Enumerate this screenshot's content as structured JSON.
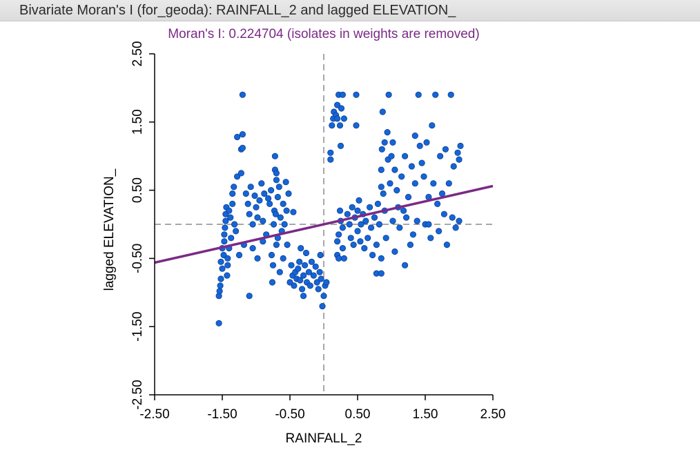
{
  "window": {
    "title": "Bivariate Moran's I (for_geoda): RAINFALL_2 and lagged ELEVATION_"
  },
  "colors": {
    "points": "#1565d8",
    "point_stroke": "#0d3f8e",
    "regression": "#7b2a86",
    "subtitle": "#7b2a86",
    "axis": "#000000",
    "dashed": "#8a8a8a"
  },
  "chart_data": {
    "type": "scatter",
    "title": "",
    "subtitle": "Moran's I: 0.224704 (isolates in weights are removed)",
    "xlabel": "RAINFALL_2",
    "ylabel": "lagged ELEVATION_",
    "xlim": [
      -2.5,
      2.5
    ],
    "ylim": [
      -2.5,
      2.5
    ],
    "xticks": [
      "-2.50",
      "-1.50",
      "-0.50",
      "0.50",
      "1.50",
      "2.50"
    ],
    "yticks": [
      "-2.50",
      "-1.50",
      "-0.50",
      "0.50",
      "1.50",
      "2.50"
    ],
    "grid": false,
    "reference_lines": {
      "x": 0,
      "y": 0
    },
    "regression": {
      "slope": 0.2247,
      "intercept": 0
    },
    "points": [
      [
        -1.55,
        -1.45
      ],
      [
        -1.55,
        -1.05
      ],
      [
        -1.54,
        -0.98
      ],
      [
        -1.53,
        -0.9
      ],
      [
        -1.52,
        -0.8
      ],
      [
        -1.52,
        -0.55
      ],
      [
        -1.5,
        -0.65
      ],
      [
        -1.5,
        -0.35
      ],
      [
        -1.48,
        -0.45
      ],
      [
        -1.47,
        -0.25
      ],
      [
        -1.47,
        -0.15
      ],
      [
        -1.46,
        -0.05
      ],
      [
        -1.45,
        0.05
      ],
      [
        -1.45,
        0.15
      ],
      [
        -1.44,
        0.25
      ],
      [
        -1.43,
        -0.75
      ],
      [
        -1.42,
        -0.6
      ],
      [
        -1.42,
        -0.5
      ],
      [
        -1.4,
        -0.35
      ],
      [
        -1.4,
        0.2
      ],
      [
        -1.38,
        0.1
      ],
      [
        -1.37,
        -0.2
      ],
      [
        -1.35,
        0.3
      ],
      [
        -1.35,
        0.45
      ],
      [
        -1.33,
        0.55
      ],
      [
        -1.32,
        0.0
      ],
      [
        -1.3,
        -0.1
      ],
      [
        -1.28,
        0.7
      ],
      [
        -1.28,
        1.28
      ],
      [
        -1.25,
        -0.45
      ],
      [
        -1.22,
        1.1
      ],
      [
        -1.2,
        1.12
      ],
      [
        -1.2,
        1.32
      ],
      [
        -1.22,
        0.75
      ],
      [
        -1.2,
        1.9
      ],
      [
        -1.18,
        -0.3
      ],
      [
        -1.15,
        0.45
      ],
      [
        -1.12,
        0.3
      ],
      [
        -1.1,
        -1.05
      ],
      [
        -1.1,
        0.15
      ],
      [
        -1.08,
        0.55
      ],
      [
        -1.05,
        0.0
      ],
      [
        -1.05,
        -0.35
      ],
      [
        -1.02,
        0.42
      ],
      [
        -1.0,
        0.25
      ],
      [
        -0.98,
        -0.5
      ],
      [
        -0.98,
        0.1
      ],
      [
        -0.95,
        0.35
      ],
      [
        -0.92,
        0.6
      ],
      [
        -0.9,
        -0.25
      ],
      [
        -0.9,
        0.05
      ],
      [
        -0.88,
        0.45
      ],
      [
        -0.85,
        -0.15
      ],
      [
        -0.82,
        0.38
      ],
      [
        -0.8,
        0.3
      ],
      [
        -0.78,
        0.5
      ],
      [
        -0.77,
        -0.45
      ],
      [
        -0.76,
        -0.85
      ],
      [
        -0.75,
        -0.6
      ],
      [
        -0.74,
        0.0
      ],
      [
        -0.73,
        0.2
      ],
      [
        -0.72,
        0.8
      ],
      [
        -0.72,
        1.0
      ],
      [
        -0.71,
        0.15
      ],
      [
        -0.7,
        -0.3
      ],
      [
        -0.7,
        0.65
      ],
      [
        -0.7,
        0.75
      ],
      [
        -0.68,
        -0.2
      ],
      [
        -0.68,
        0.4
      ],
      [
        -0.66,
        0.55
      ],
      [
        -0.65,
        -0.7
      ],
      [
        -0.64,
        0.1
      ],
      [
        -0.62,
        -0.1
      ],
      [
        -0.6,
        0.3
      ],
      [
        -0.6,
        -0.5
      ],
      [
        -0.58,
        0.0
      ],
      [
        -0.56,
        0.62
      ],
      [
        -0.55,
        0.2
      ],
      [
        -0.54,
        -0.3
      ],
      [
        -0.52,
        0.45
      ],
      [
        -0.5,
        -0.85
      ],
      [
        -0.48,
        -0.6
      ],
      [
        -0.46,
        -0.75
      ],
      [
        -0.45,
        0.18
      ],
      [
        -0.44,
        -0.9
      ],
      [
        -0.42,
        -0.7
      ],
      [
        -0.4,
        -0.8
      ],
      [
        -0.38,
        -0.65
      ],
      [
        -0.36,
        -0.55
      ],
      [
        -0.35,
        -0.82
      ],
      [
        -0.34,
        -0.35
      ],
      [
        -0.32,
        -0.95
      ],
      [
        -0.3,
        -0.75
      ],
      [
        -0.3,
        -1.05
      ],
      [
        -0.28,
        -0.6
      ],
      [
        -0.26,
        -0.42
      ],
      [
        -0.25,
        -0.85
      ],
      [
        -0.22,
        -0.7
      ],
      [
        -0.2,
        -0.9
      ],
      [
        -0.18,
        -0.55
      ],
      [
        -0.15,
        -0.75
      ],
      [
        -0.12,
        -0.62
      ],
      [
        -0.1,
        -0.85
      ],
      [
        -0.08,
        -0.95
      ],
      [
        -0.06,
        -0.7
      ],
      [
        -0.05,
        -0.45
      ],
      [
        -0.04,
        -0.8
      ],
      [
        -0.02,
        -1.2
      ],
      [
        0.0,
        -1.05
      ],
      [
        0.02,
        -0.9
      ],
      [
        0.04,
        -0.85
      ],
      [
        0.1,
        0.95
      ],
      [
        0.1,
        1.05
      ],
      [
        0.12,
        1.45
      ],
      [
        0.14,
        1.55
      ],
      [
        0.15,
        1.65
      ],
      [
        0.18,
        1.6
      ],
      [
        0.2,
        1.55
      ],
      [
        0.2,
        1.75
      ],
      [
        0.22,
        1.9
      ],
      [
        0.24,
        1.45
      ],
      [
        0.25,
        1.15
      ],
      [
        0.26,
        1.7
      ],
      [
        0.28,
        1.9
      ],
      [
        0.3,
        1.55
      ],
      [
        0.2,
        -0.25
      ],
      [
        0.22,
        -0.15
      ],
      [
        0.2,
        -0.45
      ],
      [
        0.22,
        -0.5
      ],
      [
        0.24,
        0.2
      ],
      [
        0.25,
        0.05
      ],
      [
        0.28,
        -0.05
      ],
      [
        0.28,
        -0.35
      ],
      [
        0.3,
        -0.5
      ],
      [
        0.35,
        0.15
      ],
      [
        0.38,
        0.0
      ],
      [
        0.4,
        -0.2
      ],
      [
        0.42,
        0.25
      ],
      [
        0.44,
        -0.3
      ],
      [
        0.46,
        0.1
      ],
      [
        0.48,
        1.9
      ],
      [
        0.48,
        1.45
      ],
      [
        0.5,
        -0.1
      ],
      [
        0.5,
        0.2
      ],
      [
        0.52,
        0.35
      ],
      [
        0.54,
        -0.25
      ],
      [
        0.55,
        0.0
      ],
      [
        0.58,
        0.15
      ],
      [
        0.6,
        -0.35
      ],
      [
        0.62,
        0.05
      ],
      [
        0.65,
        -0.2
      ],
      [
        0.68,
        0.25
      ],
      [
        0.7,
        -0.05
      ],
      [
        0.72,
        -0.45
      ],
      [
        0.75,
        0.1
      ],
      [
        0.78,
        -0.3
      ],
      [
        0.78,
        -0.72
      ],
      [
        0.8,
        0.3
      ],
      [
        0.82,
        0.0
      ],
      [
        0.85,
        -0.5
      ],
      [
        0.85,
        -0.72
      ],
      [
        0.85,
        0.55
      ],
      [
        0.85,
        0.8
      ],
      [
        0.86,
        1.1
      ],
      [
        0.87,
        1.65
      ],
      [
        0.88,
        0.45
      ],
      [
        0.9,
        1.2
      ],
      [
        0.9,
        0.2
      ],
      [
        0.92,
        -0.2
      ],
      [
        0.94,
        1.35
      ],
      [
        0.95,
        0.95
      ],
      [
        0.96,
        1.9
      ],
      [
        0.98,
        0.6
      ],
      [
        1.0,
        1.0
      ],
      [
        1.02,
        1.2
      ],
      [
        1.02,
        0.05
      ],
      [
        1.05,
        0.8
      ],
      [
        1.05,
        -0.4
      ],
      [
        1.08,
        0.5
      ],
      [
        1.1,
        0.25
      ],
      [
        1.12,
        -0.05
      ],
      [
        1.15,
        0.7
      ],
      [
        1.18,
        0.2
      ],
      [
        1.2,
        -0.6
      ],
      [
        1.2,
        1.0
      ],
      [
        1.22,
        0.1
      ],
      [
        1.25,
        0.4
      ],
      [
        1.28,
        -0.3
      ],
      [
        1.3,
        0.85
      ],
      [
        1.32,
        -0.15
      ],
      [
        1.35,
        1.3
      ],
      [
        1.35,
        0.6
      ],
      [
        1.38,
        0.05
      ],
      [
        1.4,
        1.9
      ],
      [
        1.42,
        1.15
      ],
      [
        1.45,
        0.9
      ],
      [
        1.48,
        0.7
      ],
      [
        1.5,
        0.0
      ],
      [
        1.52,
        1.2
      ],
      [
        1.55,
        0.4
      ],
      [
        1.55,
        0.0
      ],
      [
        1.58,
        -0.2
      ],
      [
        1.6,
        1.45
      ],
      [
        1.62,
        0.6
      ],
      [
        1.65,
        1.9
      ],
      [
        1.68,
        0.3
      ],
      [
        1.7,
        -0.1
      ],
      [
        1.72,
        1.0
      ],
      [
        1.75,
        0.45
      ],
      [
        1.78,
        0.15
      ],
      [
        1.8,
        1.1
      ],
      [
        1.82,
        -0.3
      ],
      [
        1.85,
        0.6
      ],
      [
        1.88,
        1.9
      ],
      [
        1.9,
        0.1
      ],
      [
        1.92,
        0.85
      ],
      [
        1.95,
        -0.05
      ],
      [
        1.98,
        1.05
      ],
      [
        2.0,
        0.05
      ],
      [
        2.0,
        0.95
      ],
      [
        2.02,
        1.15
      ]
    ]
  }
}
